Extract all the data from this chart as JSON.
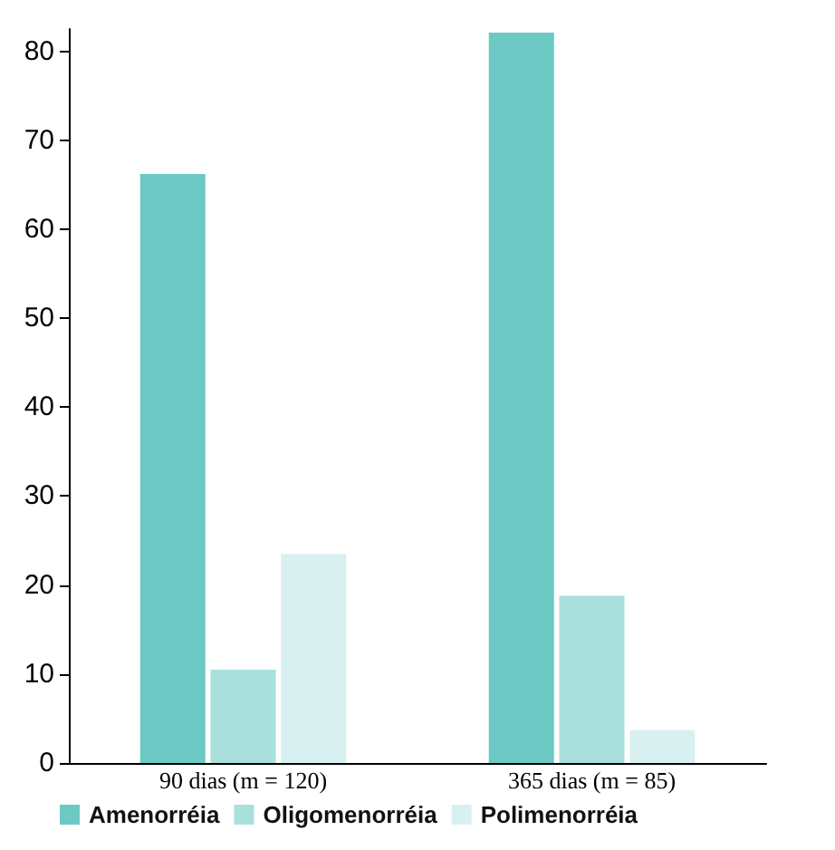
{
  "chart_data": {
    "type": "bar",
    "categories": [
      "90 dias (m = 120)",
      "365 dias (m = 85)"
    ],
    "series": [
      {
        "name": "Amenorréia",
        "color": "#6cc9c4",
        "values": [
          66.2,
          82.1
        ]
      },
      {
        "name": "Oligomenorréia",
        "color": "#a8e0dc",
        "values": [
          10.5,
          18.8
        ]
      },
      {
        "name": "Polimenorréia",
        "color": "#d9f0f0",
        "values": [
          23.5,
          3.7
        ]
      }
    ],
    "ylim": [
      0,
      82.5
    ],
    "yticks": [
      0,
      10,
      20,
      30,
      40,
      50,
      60,
      70,
      80
    ],
    "grid": false,
    "legend": "bottom"
  }
}
